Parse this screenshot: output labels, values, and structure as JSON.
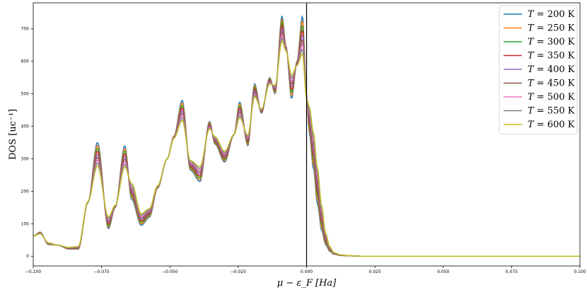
{
  "chart_data": {
    "type": "line",
    "title": "",
    "xlabel": "μ − ε_F [Ha]",
    "ylabel": "DOS [uc⁻¹]",
    "xlim": [
      -0.1,
      0.1
    ],
    "ylim": [
      -30,
      780
    ],
    "x_ticks": [
      -0.1,
      -0.075,
      -0.05,
      -0.025,
      0.0,
      0.025,
      0.05,
      0.075,
      0.1
    ],
    "x_tick_labels": [
      "−0.100",
      "−0.075",
      "−0.050",
      "−0.025",
      "0.000",
      "0.025",
      "0.050",
      "0.075",
      "0.100"
    ],
    "y_ticks": [
      0,
      100,
      200,
      300,
      400,
      500,
      600,
      700
    ],
    "y_tick_labels": [
      "0",
      "100",
      "200",
      "300",
      "400",
      "500",
      "600",
      "700"
    ],
    "grid": false,
    "legend_position": "top-right",
    "vertical_line_at_x": 0.0,
    "peaks": {
      "x": [
        -0.1,
        -0.0975,
        -0.0945,
        -0.091,
        -0.087,
        -0.0835,
        -0.08,
        -0.0765,
        -0.0725,
        -0.07,
        -0.0665,
        -0.064,
        -0.0605,
        -0.0575,
        -0.0545,
        -0.051,
        -0.0485,
        -0.0455,
        -0.0425,
        -0.039,
        -0.0355,
        -0.0335,
        -0.03,
        -0.0265,
        -0.0245,
        -0.0215,
        -0.019,
        -0.0165,
        -0.0135,
        -0.0115,
        -0.009,
        -0.0075,
        -0.0055,
        -0.0035,
        -0.0015,
        0.0,
        0.001,
        0.0025,
        0.004,
        0.0055,
        0.007,
        0.0085,
        0.01,
        0.0125,
        0.015,
        0.02,
        0.025,
        0.05,
        0.075,
        0.1
      ],
      "base": [
        62,
        66,
        44,
        34,
        30,
        34,
        170,
        240,
        140,
        160,
        240,
        250,
        150,
        160,
        220,
        300,
        360,
        385,
        310,
        300,
        380,
        380,
        340,
        375,
        400,
        390,
        470,
        460,
        520,
        540,
        620,
        625,
        595,
        580,
        560,
        480,
        380,
        270,
        160,
        80,
        35,
        15,
        6,
        2,
        1,
        0,
        0,
        0,
        0,
        0
      ],
      "amp": [
        0,
        8,
        -8,
        0,
        -8,
        -12,
        -5,
        110,
        -55,
        -10,
        100,
        -75,
        -55,
        -40,
        -10,
        0,
        10,
        95,
        -45,
        -70,
        35,
        -35,
        -50,
        0,
        75,
        -50,
        60,
        -20,
        30,
        -40,
        120,
        20,
        -110,
        20,
        180,
        15,
        0,
        0,
        0,
        0,
        0,
        0,
        0,
        0,
        0,
        0,
        0,
        0,
        0,
        0
      ],
      "shift": [
        0,
        0,
        0,
        0,
        0,
        0,
        0,
        0,
        0,
        0,
        0,
        0,
        0,
        0,
        0,
        0,
        0,
        0,
        0,
        0,
        0,
        0,
        0,
        0,
        0,
        0,
        0,
        0,
        0,
        0,
        0,
        0,
        0,
        0,
        0,
        0,
        -80,
        -110,
        -110,
        -75,
        -35,
        -14,
        -5,
        -2,
        -1,
        0,
        0,
        0,
        0,
        0
      ]
    },
    "series": [
      {
        "name": "T = 200 K",
        "temperature": 200,
        "color": "#1f77b4"
      },
      {
        "name": "T = 250 K",
        "temperature": 250,
        "color": "#ff7f0e"
      },
      {
        "name": "T = 300 K",
        "temperature": 300,
        "color": "#2ca02c"
      },
      {
        "name": "T = 350 K",
        "temperature": 350,
        "color": "#d62728"
      },
      {
        "name": "T = 400 K",
        "temperature": 400,
        "color": "#9467bd"
      },
      {
        "name": "T = 450 K",
        "temperature": 450,
        "color": "#8c564b"
      },
      {
        "name": "T = 500 K",
        "temperature": 500,
        "color": "#e377c2"
      },
      {
        "name": "T = 550 K",
        "temperature": 550,
        "color": "#7f7f7f"
      },
      {
        "name": "T = 600 K",
        "temperature": 600,
        "color": "#bcbd22"
      }
    ]
  },
  "legend": {
    "items": [
      {
        "label_prefix": "T",
        "label_suffix": " = 200 K"
      },
      {
        "label_prefix": "T",
        "label_suffix": " = 250 K"
      },
      {
        "label_prefix": "T",
        "label_suffix": " = 300 K"
      },
      {
        "label_prefix": "T",
        "label_suffix": " = 350 K"
      },
      {
        "label_prefix": "T",
        "label_suffix": " = 400 K"
      },
      {
        "label_prefix": "T",
        "label_suffix": " = 450 K"
      },
      {
        "label_prefix": "T",
        "label_suffix": " = 500 K"
      },
      {
        "label_prefix": "T",
        "label_suffix": " = 550 K"
      },
      {
        "label_prefix": "T",
        "label_suffix": " = 600 K"
      }
    ]
  }
}
